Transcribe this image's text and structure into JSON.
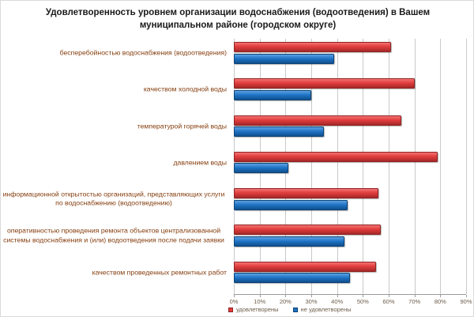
{
  "chart_data": {
    "type": "bar",
    "orientation": "horizontal",
    "title": "Удовлетворенность уровнем организации водоснабжения (водоотведения) в Вашем муниципальном районе (городском округе)",
    "categories": [
      "бесперебойностью водоснабжения (водоотведения)",
      "качеством холодной воды",
      "температурой горячей воды",
      "давлением воды",
      "информационной открытостью организаций, представляющих услуги по водоснабжению (водоотведению)",
      "оперативностью проведения ремонта объектов централизованной системы водоснабжения и (или) водоотведения после подачи заявки",
      "качеством проведенных ремонтных работ"
    ],
    "series": [
      {
        "name": "удовлетворены",
        "color": "#e13d3d",
        "values": [
          61,
          70,
          65,
          79,
          56,
          57,
          55
        ]
      },
      {
        "name": "не удовлетворены",
        "color": "#1d71c2",
        "values": [
          39,
          30,
          35,
          21,
          44,
          43,
          45
        ]
      }
    ],
    "xlim": [
      0,
      90
    ],
    "x_ticks": [
      "0%",
      "10%",
      "20%",
      "30%",
      "40%",
      "50%",
      "60%",
      "70%",
      "80%",
      "90%"
    ],
    "grid": true,
    "legend_position": "bottom"
  }
}
